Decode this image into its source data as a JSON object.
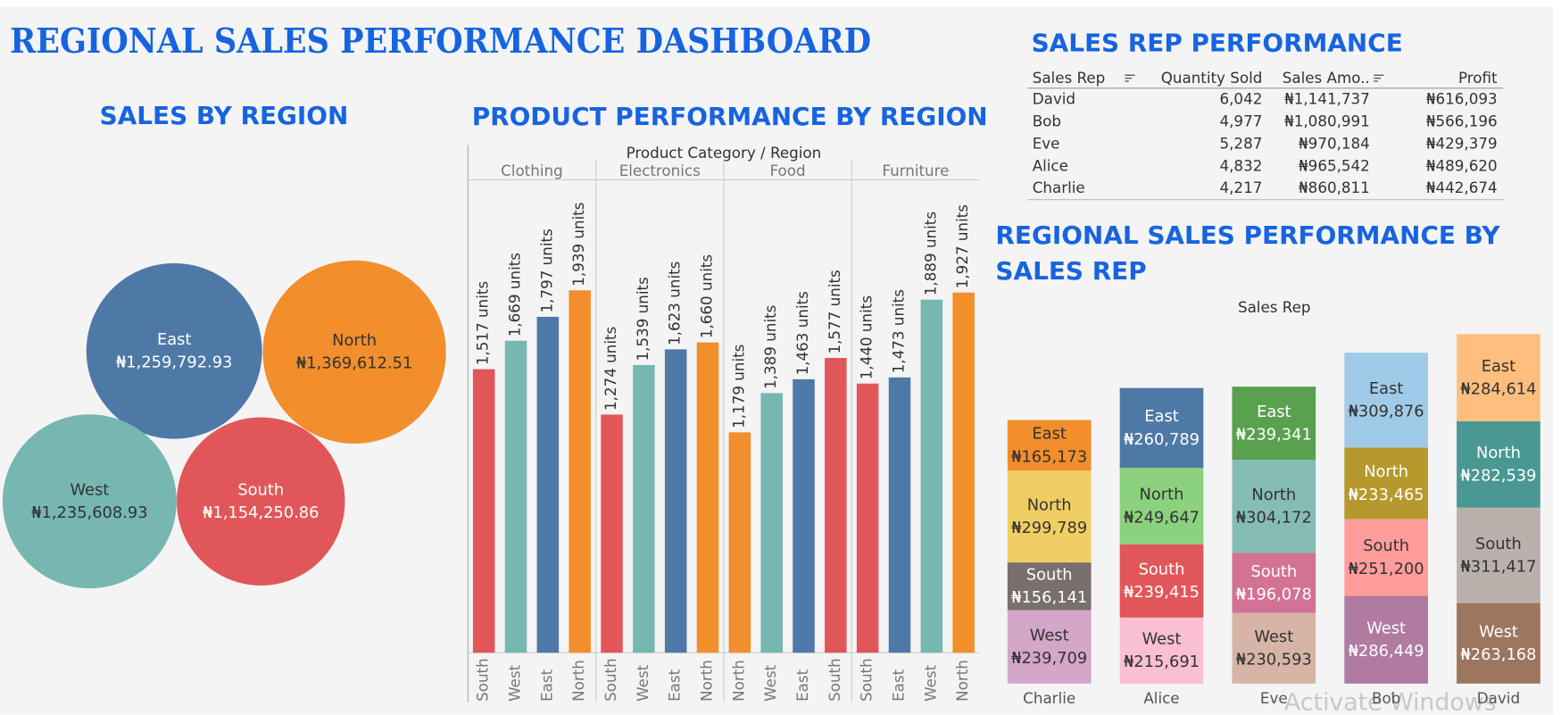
{
  "title": "REGIONAL SALES PERFORMANCE DASHBOARD",
  "watermark": "Activate Windows",
  "table": {
    "title": "SALES REP PERFORMANCE",
    "columns": [
      "Sales Rep",
      "Quantity Sold",
      "Sales Amo..",
      "Profit"
    ],
    "rows": [
      [
        "David",
        "6,042",
        "₦1,141,737",
        "₦616,093"
      ],
      [
        "Bob",
        "4,977",
        "₦1,080,991",
        "₦566,196"
      ],
      [
        "Eve",
        "5,287",
        "₦970,184",
        "₦429,379"
      ],
      [
        "Alice",
        "4,832",
        "₦965,542",
        "₦489,620"
      ],
      [
        "Charlie",
        "4,217",
        "₦860,811",
        "₦442,674"
      ]
    ]
  },
  "chart_data": [
    {
      "type": "bubble",
      "title": "SALES BY REGION",
      "categories": [
        "East",
        "North",
        "West",
        "South"
      ],
      "values": [
        1259792.93,
        1369612.51,
        1235608.93,
        1154250.86
      ],
      "value_labels": [
        "₦1,259,792.93",
        "₦1,369,612.51",
        "₦1,235,608.93",
        "₦1,154,250.86"
      ],
      "colors": [
        "#4e79a7",
        "#f28e2b",
        "#76b7b2",
        "#e15759"
      ]
    },
    {
      "type": "grouped_bar",
      "title": "PRODUCT PERFORMANCE BY REGION",
      "axis_title": "Product Category / Region",
      "colors": {
        "East": "#4e79a7",
        "North": "#f28e2b",
        "South": "#e15759",
        "West": "#76b7b2"
      },
      "groups": [
        {
          "name": "Clothing",
          "categories": [
            "South",
            "West",
            "East",
            "North"
          ],
          "values": [
            1517,
            1669,
            1797,
            1939
          ],
          "value_labels": [
            "1,517 units",
            "1,669 units",
            "1,797 units",
            "1,939 units"
          ]
        },
        {
          "name": "Electronics",
          "categories": [
            "South",
            "West",
            "East",
            "North"
          ],
          "values": [
            1274,
            1539,
            1623,
            1660
          ],
          "value_labels": [
            "1,274 units",
            "1,539 units",
            "1,623 units",
            "1,660 units"
          ]
        },
        {
          "name": "Food",
          "categories": [
            "North",
            "West",
            "East",
            "South"
          ],
          "values": [
            1179,
            1389,
            1463,
            1577
          ],
          "value_labels": [
            "1,179 units",
            "1,389 units",
            "1,463 units",
            "1,577 units"
          ]
        },
        {
          "name": "Furniture",
          "categories": [
            "South",
            "East",
            "West",
            "North"
          ],
          "values": [
            1440,
            1473,
            1889,
            1927
          ],
          "value_labels": [
            "1,440 units",
            "1,473 units",
            "1,889 units",
            "1,927 units"
          ]
        }
      ]
    },
    {
      "type": "stacked_bar",
      "title": "REGIONAL SALES PERFORMANCE BY SALES REP",
      "x_label": "Sales Rep",
      "categories": [
        "Charlie",
        "Alice",
        "Eve",
        "Bob",
        "David"
      ],
      "series": [
        {
          "name": "West",
          "values": [
            239709,
            215691,
            230593,
            286449,
            263168
          ],
          "value_labels": [
            "₦239,709",
            "₦215,691",
            "₦230,593",
            "₦286,449",
            "₦263,168"
          ],
          "colors": [
            "#d4a6c8",
            "#fabfd2",
            "#d7b5a6",
            "#b07aa1",
            "#9d7660"
          ]
        },
        {
          "name": "South",
          "values": [
            156141,
            239415,
            196078,
            251200,
            311417
          ],
          "value_labels": [
            "₦156,141",
            "₦239,415",
            "₦196,078",
            "₦251,200",
            "₦311,417"
          ],
          "colors": [
            "#79706e",
            "#e15759",
            "#d37295",
            "#ff9d9a",
            "#bab0ac"
          ]
        },
        {
          "name": "North",
          "values": [
            299789,
            249647,
            304172,
            233465,
            282539
          ],
          "value_labels": [
            "₦299,789",
            "₦249,647",
            "₦304,172",
            "₦233,465",
            "₦282,539"
          ],
          "colors": [
            "#f1ce63",
            "#8cd17d",
            "#86bcb6",
            "#b6992d",
            "#499894"
          ]
        },
        {
          "name": "East",
          "values": [
            165173,
            260789,
            239341,
            309876,
            284614
          ],
          "value_labels": [
            "₦165,173",
            "₦260,789",
            "₦239,341",
            "₦309,876",
            "₦284,614"
          ],
          "colors": [
            "#f28e2b",
            "#4e79a7",
            "#59a14f",
            "#a0cbe8",
            "#ffbe7d"
          ]
        }
      ]
    }
  ]
}
